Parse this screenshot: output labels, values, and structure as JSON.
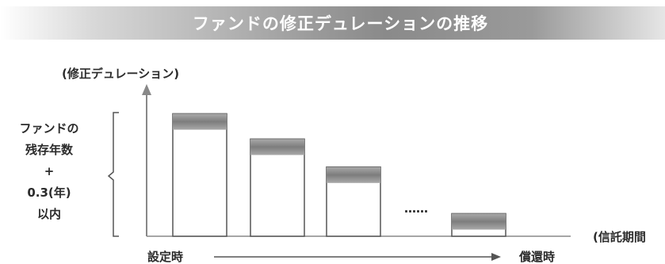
{
  "chart_data": {
    "type": "bar",
    "title": "ファンドの修正デュレーションの推移",
    "ylabel": "(修正デュレーション)",
    "xlabel": "(信託期間",
    "x_start_label": "設定時",
    "x_end_label": "償還時",
    "ellipsis": "……",
    "range_label": [
      "ファンドの",
      "残存年数",
      "+",
      "0.3(年)",
      "以内"
    ],
    "ylim": [
      0,
      100
    ],
    "bars": [
      {
        "value": 92,
        "band": 12
      },
      {
        "value": 73,
        "band": 12
      },
      {
        "value": 52,
        "band": 12
      },
      {
        "value": 17,
        "band": 12
      }
    ],
    "colors": {
      "band_dark": "#7d7d7d",
      "band_light": "#b5b5b5",
      "outline": "#555555",
      "axis": "#888888"
    }
  }
}
